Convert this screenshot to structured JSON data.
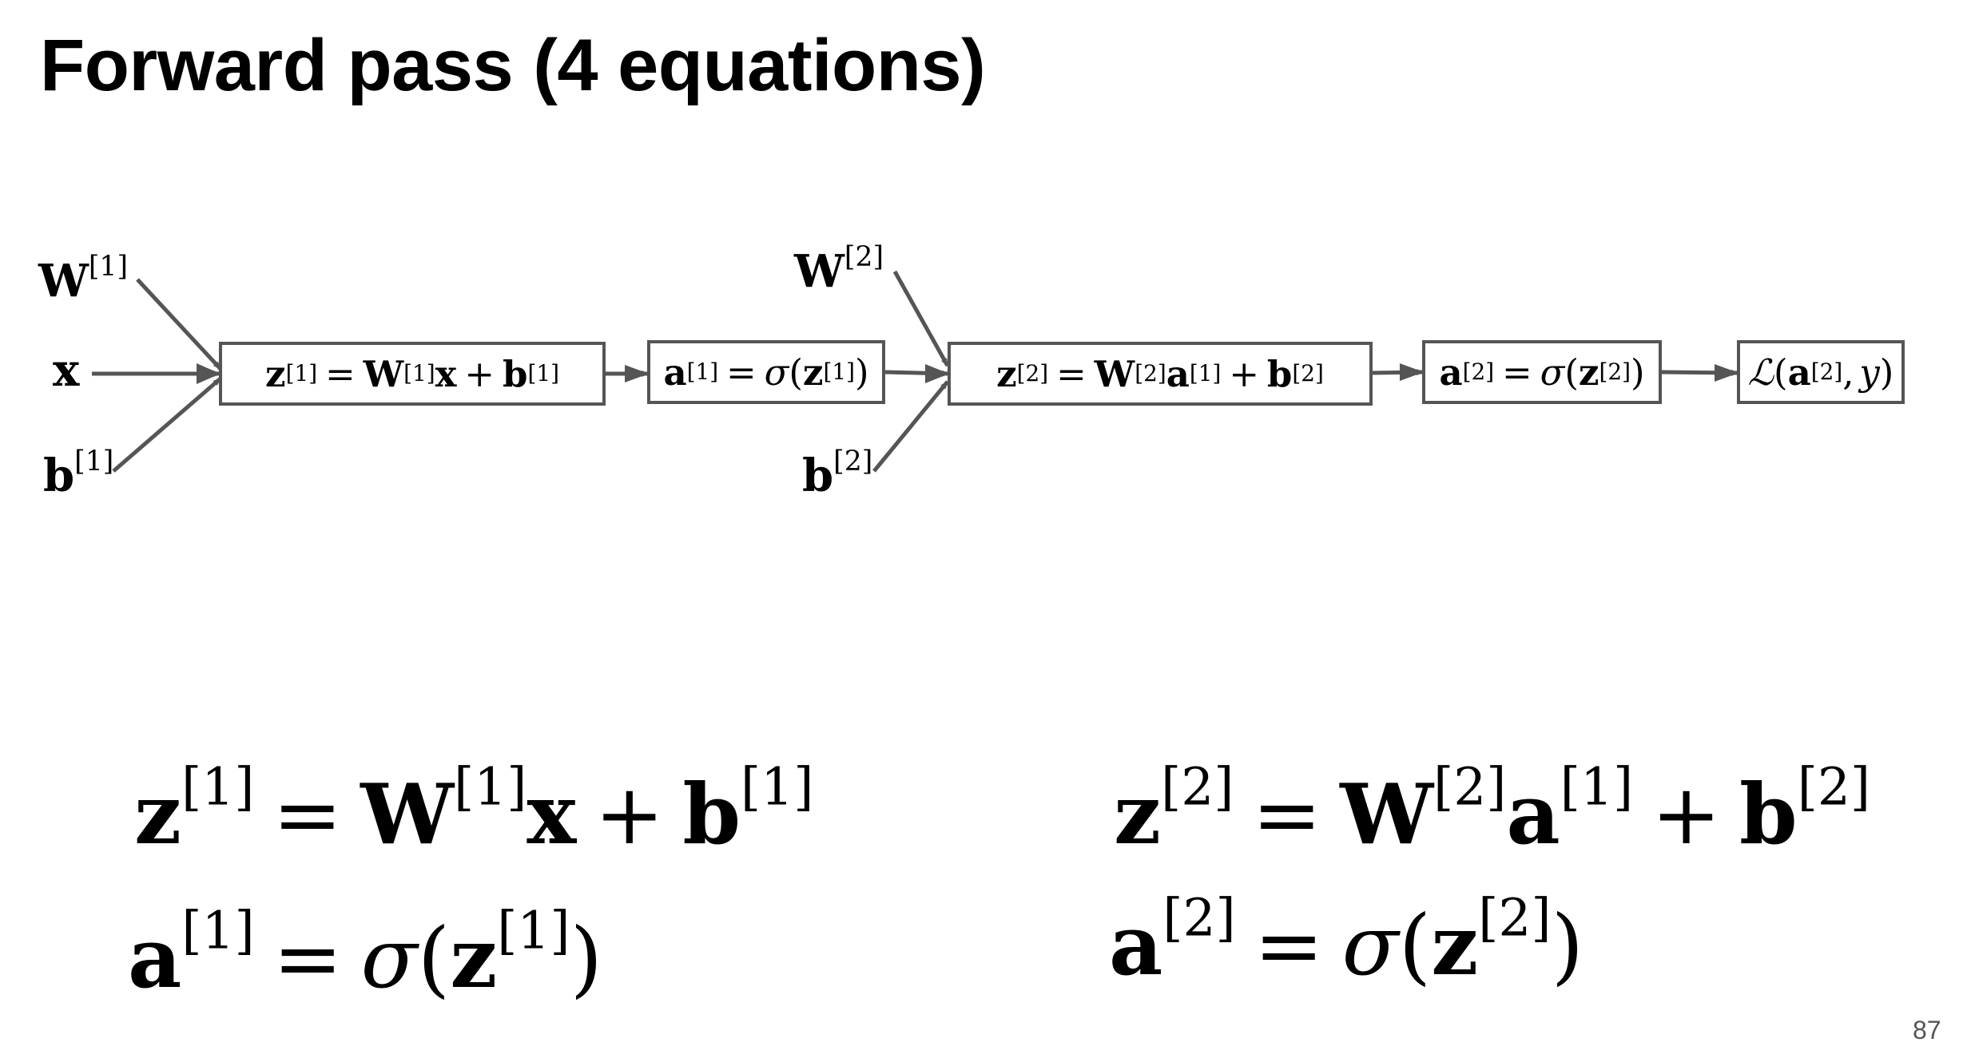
{
  "slide": {
    "title": "Forward pass (4 equations)",
    "page_number": "87"
  },
  "diagram": {
    "inputs": {
      "W1": {
        "base": "W",
        "sup": "[1]"
      },
      "x": {
        "base": "x"
      },
      "b1": {
        "base": "b",
        "sup": "[1]"
      },
      "W2": {
        "base": "W",
        "sup": "[2]"
      },
      "b2": {
        "base": "b",
        "sup": "[2]"
      }
    },
    "nodes": [
      {
        "id": "z1-node",
        "text": "z[1] = W[1]x + b[1]"
      },
      {
        "id": "a1-node",
        "text": "a[1] = σ(z[1])"
      },
      {
        "id": "z2-node",
        "text": "z[2] = W[2]a[1] + b[2]"
      },
      {
        "id": "a2-node",
        "text": "a[2] = σ(z[2])"
      },
      {
        "id": "loss-node",
        "text": "ℒ(a[2], y)"
      }
    ],
    "edge_color": "#555555"
  },
  "equations": [
    "z[1] = W[1]x + b[1]",
    "a[1] = σ(z[1])",
    "z[2] = W[2]a[1] + b[2]",
    "a[2] = σ(z[2])"
  ],
  "symbols": {
    "z": "z",
    "a": "a",
    "W": "W",
    "x": "x",
    "b": "b",
    "y": "y",
    "sigma": "σ",
    "loss": "ℒ",
    "eq": "=",
    "plus": "+",
    "lp": "(",
    "rp": ")",
    "comma": ",",
    "s1": "[1]",
    "s2": "[2]"
  }
}
